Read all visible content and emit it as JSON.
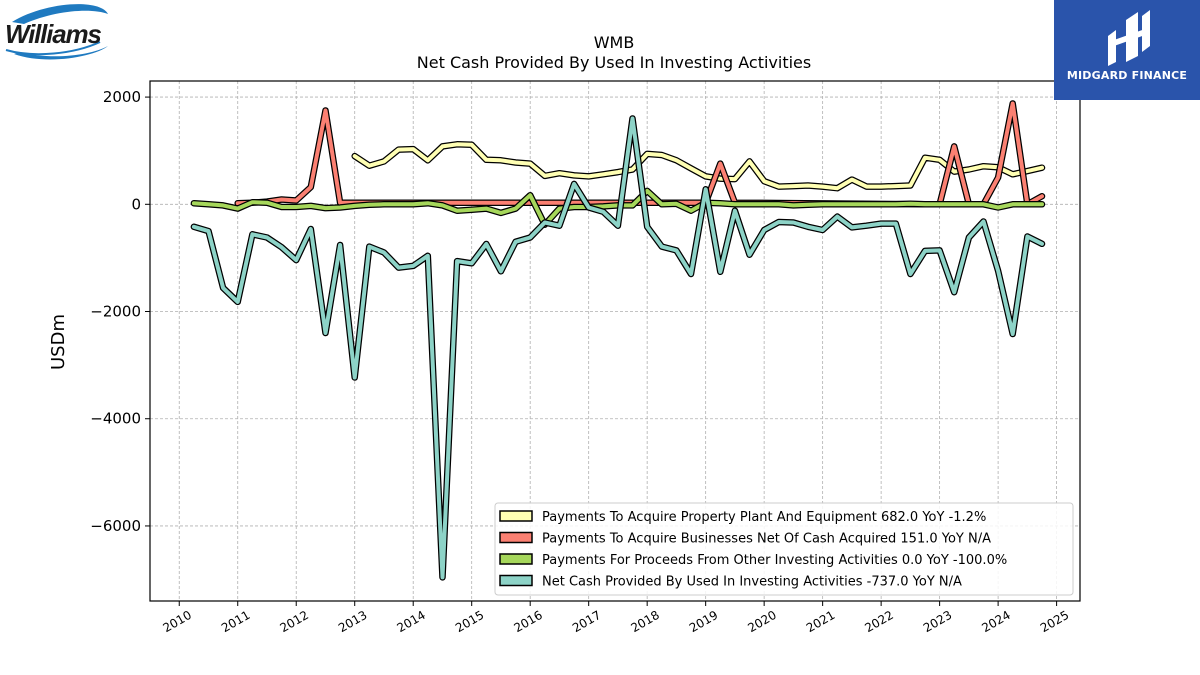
{
  "header": {
    "company_logo_text": "Williams",
    "brand_name": "MIDGARD FINANCE"
  },
  "chart_data": {
    "type": "line",
    "title": "WMB",
    "subtitle": "Net Cash Provided By Used In Investing Activities",
    "xlabel": "",
    "ylabel": "USDm",
    "xlim": [
      2009.5,
      2025.4
    ],
    "ylim": [
      -7400,
      2300
    ],
    "x_ticks": [
      2010,
      2011,
      2012,
      2013,
      2014,
      2015,
      2016,
      2017,
      2018,
      2019,
      2020,
      2021,
      2022,
      2023,
      2024,
      2025
    ],
    "x_tick_labels": [
      "2010",
      "2011",
      "2012",
      "2013",
      "2014",
      "2015",
      "2016",
      "2017",
      "2018",
      "2019",
      "2020",
      "2021",
      "2022",
      "2023",
      "2024",
      "2025"
    ],
    "y_ticks": [
      2000,
      0,
      -2000,
      -4000,
      -6000
    ],
    "y_tick_labels": [
      "2000",
      "0",
      "−2000",
      "−4000",
      "−6000"
    ],
    "grid": true,
    "legend_position": "lower-right",
    "series": [
      {
        "name": "Payments To Acquire Property Plant And Equipment",
        "legend_label": "Payments To Acquire Property Plant And Equipment  682.0 YoY -1.2%",
        "color": "#ffffb3",
        "x": [
          2013.0,
          2013.25,
          2013.5,
          2013.75,
          2014.0,
          2014.25,
          2014.5,
          2014.75,
          2015.0,
          2015.25,
          2015.5,
          2015.75,
          2016.0,
          2016.25,
          2016.5,
          2016.75,
          2017.0,
          2017.25,
          2017.5,
          2017.75,
          2018.0,
          2018.25,
          2018.5,
          2018.75,
          2019.0,
          2019.25,
          2019.5,
          2019.75,
          2020.0,
          2020.25,
          2020.5,
          2020.75,
          2021.0,
          2021.25,
          2021.5,
          2021.75,
          2022.0,
          2022.25,
          2022.5,
          2022.75,
          2023.0,
          2023.25,
          2023.5,
          2023.75,
          2024.0,
          2024.25,
          2024.5,
          2024.75
        ],
        "values": [
          900,
          720,
          800,
          1020,
          1030,
          820,
          1080,
          1120,
          1110,
          830,
          820,
          780,
          760,
          530,
          580,
          540,
          520,
          560,
          600,
          650,
          940,
          920,
          820,
          670,
          520,
          480,
          470,
          800,
          430,
          330,
          340,
          350,
          330,
          300,
          460,
          330,
          330,
          340,
          350,
          870,
          830,
          610,
          650,
          710,
          690,
          560,
          620,
          682
        ]
      },
      {
        "name": "Payments To Acquire Businesses Net Of Cash Acquired",
        "legend_label": "Payments To Acquire Businesses Net Of Cash Acquired  151.0 YoY N/A",
        "color": "#fb8072",
        "x": [
          2011.0,
          2011.25,
          2011.5,
          2011.75,
          2012.0,
          2012.25,
          2012.5,
          2012.75,
          2013.0,
          2013.25,
          2013.5,
          2013.75,
          2014.0,
          2014.25,
          2014.5,
          2014.75,
          2015.0,
          2015.25,
          2015.5,
          2015.75,
          2016.0,
          2016.25,
          2016.5,
          2016.75,
          2017.0,
          2017.25,
          2017.5,
          2017.75,
          2018.0,
          2018.25,
          2018.5,
          2018.75,
          2019.0,
          2019.25,
          2019.5,
          2022.75,
          2023.0,
          2023.25,
          2023.5,
          2023.75,
          2024.0,
          2024.25,
          2024.5,
          2024.75
        ],
        "values": [
          20,
          30,
          50,
          90,
          70,
          320,
          1750,
          30,
          30,
          30,
          30,
          30,
          30,
          30,
          30,
          30,
          30,
          30,
          30,
          30,
          30,
          30,
          30,
          30,
          30,
          30,
          30,
          30,
          30,
          30,
          30,
          30,
          30,
          760,
          30,
          0,
          0,
          1080,
          0,
          0,
          500,
          1880,
          0,
          151
        ]
      },
      {
        "name": "Payments For Proceeds From Other Investing Activities",
        "legend_label": "Payments For Proceeds From Other Investing Activities  0.0 YoY -100.0%",
        "color": "#a6d75b",
        "x": [
          2010.25,
          2010.5,
          2010.75,
          2011.0,
          2011.25,
          2011.5,
          2011.75,
          2012.0,
          2012.25,
          2012.5,
          2012.75,
          2013.0,
          2013.25,
          2013.5,
          2013.75,
          2014.0,
          2014.25,
          2014.5,
          2014.75,
          2015.0,
          2015.25,
          2015.5,
          2015.75,
          2016.0,
          2016.25,
          2016.5,
          2016.75,
          2017.0,
          2017.25,
          2017.5,
          2017.75,
          2018.0,
          2018.25,
          2018.5,
          2018.75,
          2019.0,
          2019.25,
          2019.5,
          2019.75,
          2020.0,
          2020.25,
          2020.5,
          2020.75,
          2021.0,
          2021.25,
          2021.5,
          2021.75,
          2022.0,
          2022.25,
          2022.5,
          2022.75,
          2023.0,
          2023.25,
          2023.5,
          2023.75,
          2024.0,
          2024.25,
          2024.5,
          2024.75
        ],
        "values": [
          20,
          0,
          -20,
          -80,
          40,
          30,
          -50,
          -50,
          -30,
          -70,
          -60,
          -30,
          -10,
          0,
          0,
          0,
          20,
          -20,
          -120,
          -100,
          -80,
          -160,
          -80,
          170,
          -380,
          -80,
          -50,
          -50,
          -40,
          -20,
          -20,
          250,
          0,
          10,
          -120,
          30,
          20,
          0,
          0,
          0,
          0,
          -20,
          -10,
          0,
          0,
          0,
          0,
          0,
          0,
          10,
          0,
          0,
          0,
          0,
          0,
          -60,
          0,
          0,
          0
        ]
      },
      {
        "name": "Net Cash Provided By Used In Investing Activities",
        "legend_label": "Net Cash Provided By Used In Investing Activities  -737.0 YoY N/A",
        "color": "#8dd3c7",
        "x": [
          2010.25,
          2010.5,
          2010.75,
          2011.0,
          2011.25,
          2011.5,
          2011.75,
          2012.0,
          2012.25,
          2012.5,
          2012.75,
          2013.0,
          2013.25,
          2013.5,
          2013.75,
          2014.0,
          2014.25,
          2014.5,
          2014.75,
          2015.0,
          2015.25,
          2015.5,
          2015.75,
          2016.0,
          2016.25,
          2016.5,
          2016.75,
          2017.0,
          2017.25,
          2017.5,
          2017.75,
          2018.0,
          2018.25,
          2018.5,
          2018.75,
          2019.0,
          2019.25,
          2019.5,
          2019.75,
          2020.0,
          2020.25,
          2020.5,
          2020.75,
          2021.0,
          2021.25,
          2021.5,
          2021.75,
          2022.0,
          2022.25,
          2022.5,
          2022.75,
          2023.0,
          2023.25,
          2023.5,
          2023.75,
          2024.0,
          2024.25,
          2024.5,
          2024.75
        ],
        "values": [
          -420,
          -500,
          -1560,
          -1820,
          -560,
          -620,
          -800,
          -1040,
          -460,
          -2400,
          -760,
          -3230,
          -790,
          -900,
          -1180,
          -1150,
          -960,
          -6960,
          -1060,
          -1100,
          -740,
          -1250,
          -700,
          -620,
          -340,
          -400,
          380,
          -60,
          -140,
          -400,
          1600,
          -420,
          -790,
          -860,
          -1300,
          280,
          -1260,
          -120,
          -940,
          -480,
          -330,
          -340,
          -420,
          -480,
          -230,
          -430,
          -400,
          -360,
          -360,
          -1300,
          -870,
          -860,
          -1640,
          -620,
          -320,
          -1240,
          -2420,
          -600,
          -737
        ]
      }
    ]
  }
}
